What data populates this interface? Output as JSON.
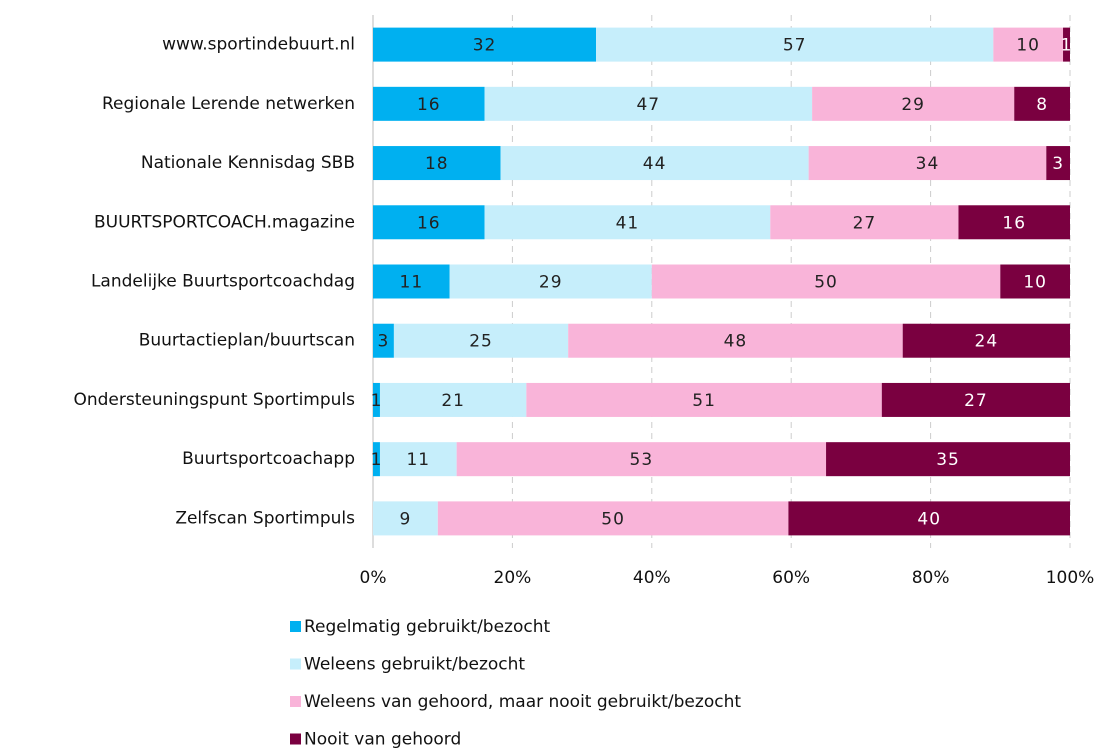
{
  "chart_data": {
    "type": "bar",
    "orientation": "horizontal",
    "stacked": true,
    "categories": [
      "www.sportindebuurt.nl",
      "Regionale Lerende netwerken",
      "Nationale Kennisdag SBB",
      "BUURTSPORTCOACH.magazine",
      "Landelijke Buurtsportcoachdag",
      "Buurtactieplan/buurtscan",
      "Ondersteuningspunt Sportimpuls",
      "Buurtsportcoachapp",
      "Zelfscan Sportimpuls"
    ],
    "series": [
      {
        "name": "Regelmatig gebruikt/bezocht",
        "color": "#00b0f0",
        "values": [
          32,
          16,
          18.3,
          16,
          11,
          3,
          1,
          1,
          0
        ],
        "value_labels": [
          "32",
          "16",
          "18",
          "16",
          "11",
          "3",
          "1",
          "1",
          null
        ]
      },
      {
        "name": "Weleens gebruikt/bezocht",
        "color": "#c6eefb",
        "values": [
          57,
          47,
          44.2,
          41,
          29,
          25,
          21,
          11,
          9.3
        ],
        "value_labels": [
          "57",
          "47",
          "44",
          "41",
          "29",
          "25",
          "21",
          "11",
          "9"
        ]
      },
      {
        "name": "Weleens van gehoord, maar nooit gebruikt/bezocht",
        "color": "#f9b4d9",
        "values": [
          10,
          29,
          34.1,
          27,
          50,
          48,
          51,
          53,
          50.3
        ],
        "value_labels": [
          "10",
          "29",
          "34",
          "27",
          "50",
          "48",
          "51",
          "53",
          "50"
        ]
      },
      {
        "name": "Nooit van gehoord",
        "color": "#7a0040",
        "values": [
          1,
          8,
          3.4,
          16,
          10,
          24,
          27,
          35,
          40.4
        ],
        "value_labels": [
          "1",
          "8",
          "3",
          "16",
          "10",
          "24",
          "27",
          "35",
          "40"
        ]
      }
    ],
    "xlim": [
      0,
      100
    ],
    "xticks": [
      {
        "value": 0,
        "label": "0%"
      },
      {
        "value": 20,
        "label": "20%"
      },
      {
        "value": 40,
        "label": "40%"
      },
      {
        "value": 60,
        "label": "60%"
      },
      {
        "value": 80,
        "label": "80%"
      },
      {
        "value": 100,
        "label": "100%"
      }
    ],
    "grid": true,
    "legend": "bottom"
  }
}
